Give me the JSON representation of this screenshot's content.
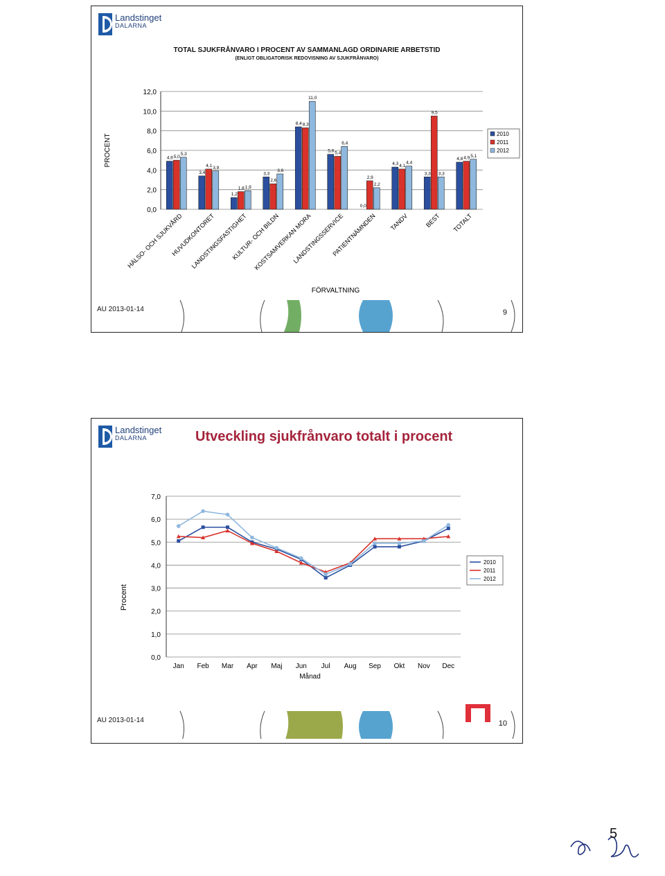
{
  "slide1": {
    "logo": {
      "name": "Landstinget",
      "sub": "DALARNA"
    },
    "title": "TOTAL SJUKFRÅNVARO I PROCENT AV SAMMANLAGD ORDINARIE ARBETSTID",
    "subtitle": "(ENLIGT OBLIGATORISK REDOVISNING AV SJUKFRÅNVARO)",
    "footer_date": "AU 2013-01-14",
    "page_number": "9"
  },
  "slide2": {
    "logo": {
      "name": "Landstinget",
      "sub": "DALARNA"
    },
    "title": "Utveckling sjukfrånvaro totalt i procent",
    "footer_date": "AU 2013-01-14",
    "page_number": "10"
  },
  "page_corner_number": "5",
  "colors": {
    "s2010": "#2b4f9e",
    "s2011": "#d9322b",
    "s2012": "#8fb8de",
    "title_red": "#a4243b",
    "logo_blue": "#1f5aa6"
  },
  "chart_data": [
    {
      "type": "bar",
      "xlabel": "FÖRVALTNING",
      "ylabel": "PROCENT",
      "ylim": [
        0,
        12
      ],
      "yticks": [
        "0,0",
        "2,0",
        "4,0",
        "6,0",
        "8,0",
        "10,0",
        "12,0"
      ],
      "categories": [
        "HÄLSO- OCH SJUKVÅRD",
        "HUVUDKONTORET",
        "LANDSTINGSFASTIGHET",
        "KULTUR- OCH BILDN",
        "KOSTSAMVERKAN MORA",
        "LANDSTINGSSERVICE",
        "PATIENTNÄMNDEN",
        "TANDV",
        "BEST",
        "TOTALT"
      ],
      "series": [
        {
          "name": "2010",
          "values": [
            4.9,
            3.4,
            1.2,
            3.3,
            8.4,
            5.6,
            0.0,
            4.3,
            3.3,
            4.8
          ]
        },
        {
          "name": "2011",
          "values": [
            5.0,
            4.1,
            1.8,
            2.6,
            8.3,
            5.4,
            2.9,
            4.1,
            9.5,
            4.9
          ]
        },
        {
          "name": "2012",
          "values": [
            5.3,
            3.9,
            1.9,
            3.6,
            11.0,
            6.4,
            2.2,
            4.4,
            3.3,
            5.1
          ]
        }
      ],
      "value_labels": [
        [
          "4,9",
          "3,4",
          "1,2",
          "3,3",
          "8,4",
          "5,6",
          "0,0",
          "4,3",
          "3,3",
          "4,8"
        ],
        [
          "5,0",
          "4,1",
          "1,8",
          "2,6",
          "8,3",
          "5,4",
          "2,9",
          "4,1",
          "9,5",
          "4,9"
        ],
        [
          "5,3",
          "3,9",
          "1,9",
          "3,6",
          "11,0",
          "6,4",
          "2,2",
          "4,4",
          "3,3",
          "5,1"
        ]
      ],
      "legend": [
        "2010",
        "2011",
        "2012"
      ],
      "legend_position": "right",
      "grid": true
    },
    {
      "type": "line",
      "xlabel": "Månad",
      "ylabel": "Procent",
      "ylim": [
        0,
        7
      ],
      "yticks": [
        "0,0",
        "1,0",
        "2,0",
        "3,0",
        "4,0",
        "5,0",
        "6,0",
        "7,0"
      ],
      "categories": [
        "Jan",
        "Feb",
        "Mar",
        "Apr",
        "Maj",
        "Jun",
        "Jul",
        "Aug",
        "Sep",
        "Okt",
        "Nov",
        "Dec"
      ],
      "series": [
        {
          "name": "2010",
          "values": [
            5.05,
            5.65,
            5.65,
            5.0,
            4.7,
            4.25,
            3.45,
            4.0,
            4.8,
            4.8,
            5.05,
            5.6
          ]
        },
        {
          "name": "2011",
          "values": [
            5.25,
            5.2,
            5.5,
            4.95,
            4.6,
            4.1,
            3.7,
            4.1,
            5.15,
            5.15,
            5.15,
            5.25
          ]
        },
        {
          "name": "2012",
          "values": [
            5.7,
            6.35,
            6.2,
            5.2,
            4.75,
            4.3,
            3.6,
            4.05,
            4.95,
            4.95,
            5.05,
            5.75
          ]
        }
      ],
      "legend": [
        "2010",
        "2011",
        "2012"
      ],
      "legend_position": "right",
      "grid": true
    }
  ]
}
